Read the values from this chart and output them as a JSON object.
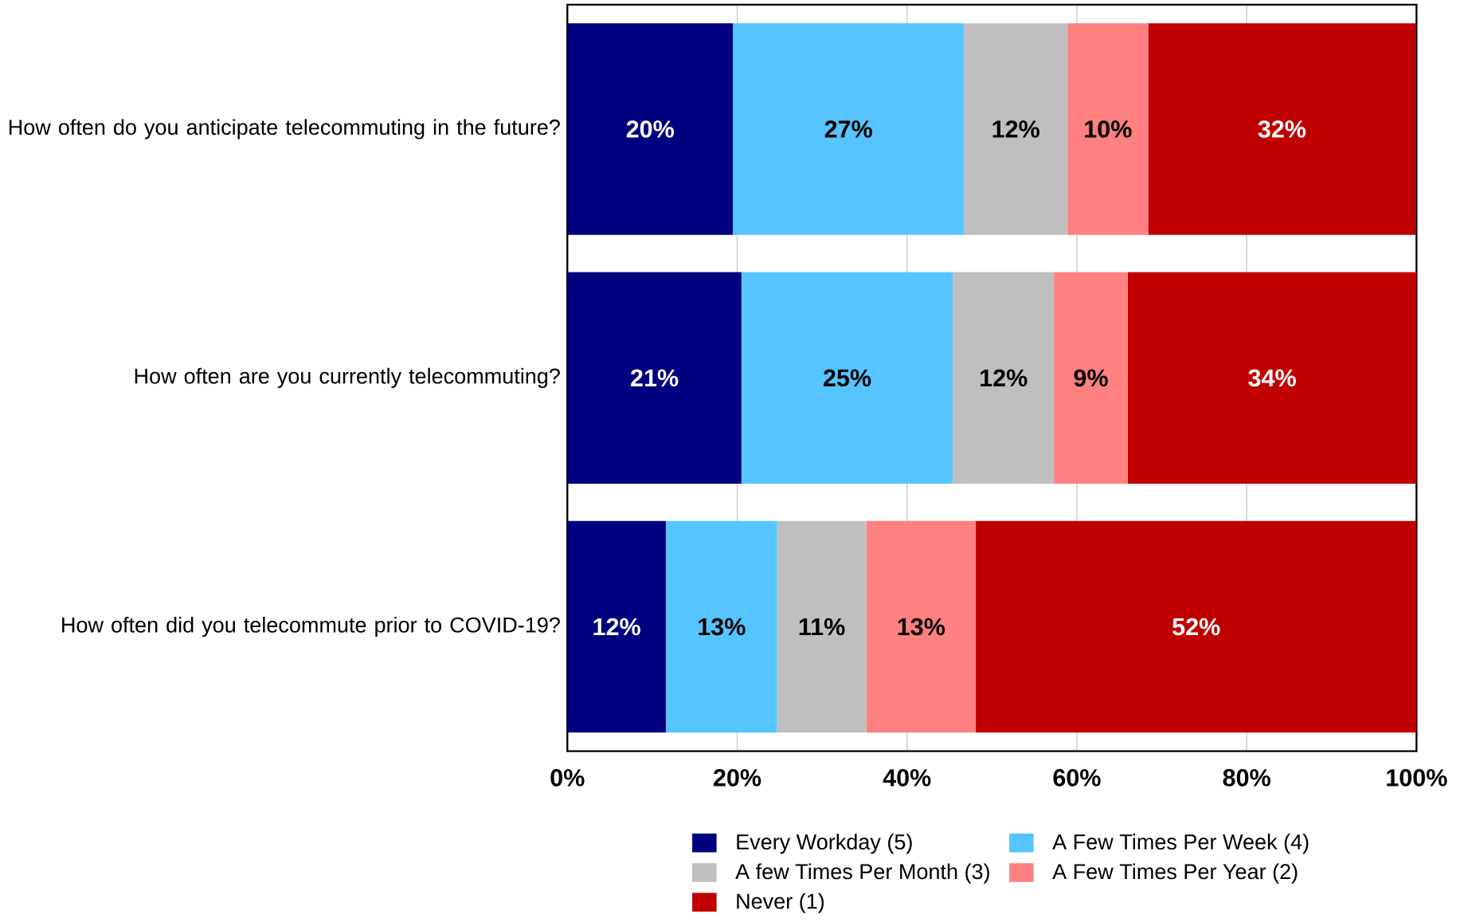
{
  "chart_data": {
    "type": "bar",
    "orientation": "horizontal",
    "stacked": true,
    "categories": [
      "How often do you anticipate telecommuting in the future?",
      "How often are you currently telecommuting?",
      "How often did you telecommute prior to COVID-19?"
    ],
    "series": [
      {
        "name": "Every Workday (5)",
        "color": "#000080",
        "values": [
          19.5,
          20.5,
          11.6
        ],
        "value_labels": [
          "20%",
          "21%",
          "12%"
        ]
      },
      {
        "name": "A Few Times Per Week (4)",
        "color": "#56c4fe",
        "values": [
          27.2,
          24.9,
          13.1
        ],
        "value_labels": [
          "27%",
          "25%",
          "13%"
        ]
      },
      {
        "name": "A few Times Per Month (3)",
        "color": "#bfbfbf",
        "values": [
          12.2,
          11.9,
          10.5
        ],
        "value_labels": [
          "12%",
          "12%",
          "11%"
        ]
      },
      {
        "name": "A Few Times Per Year (2)",
        "color": "#ff8080",
        "values": [
          9.5,
          8.7,
          12.9
        ],
        "value_labels": [
          "10%",
          "9%",
          "13%"
        ]
      },
      {
        "name": "Never (1)",
        "color": "#c00000",
        "values": [
          31.5,
          34.0,
          51.9
        ],
        "value_labels": [
          "32%",
          "34%",
          "52%"
        ]
      }
    ],
    "xlim": [
      0,
      100
    ],
    "xticks": [
      {
        "value": 0,
        "label": "0%"
      },
      {
        "value": 20,
        "label": "20%"
      },
      {
        "value": 40,
        "label": "40%"
      },
      {
        "value": 60,
        "label": "60%"
      },
      {
        "value": 80,
        "label": "80%"
      },
      {
        "value": 100,
        "label": "100%"
      }
    ],
    "grid": "x",
    "legend": "bottom"
  }
}
